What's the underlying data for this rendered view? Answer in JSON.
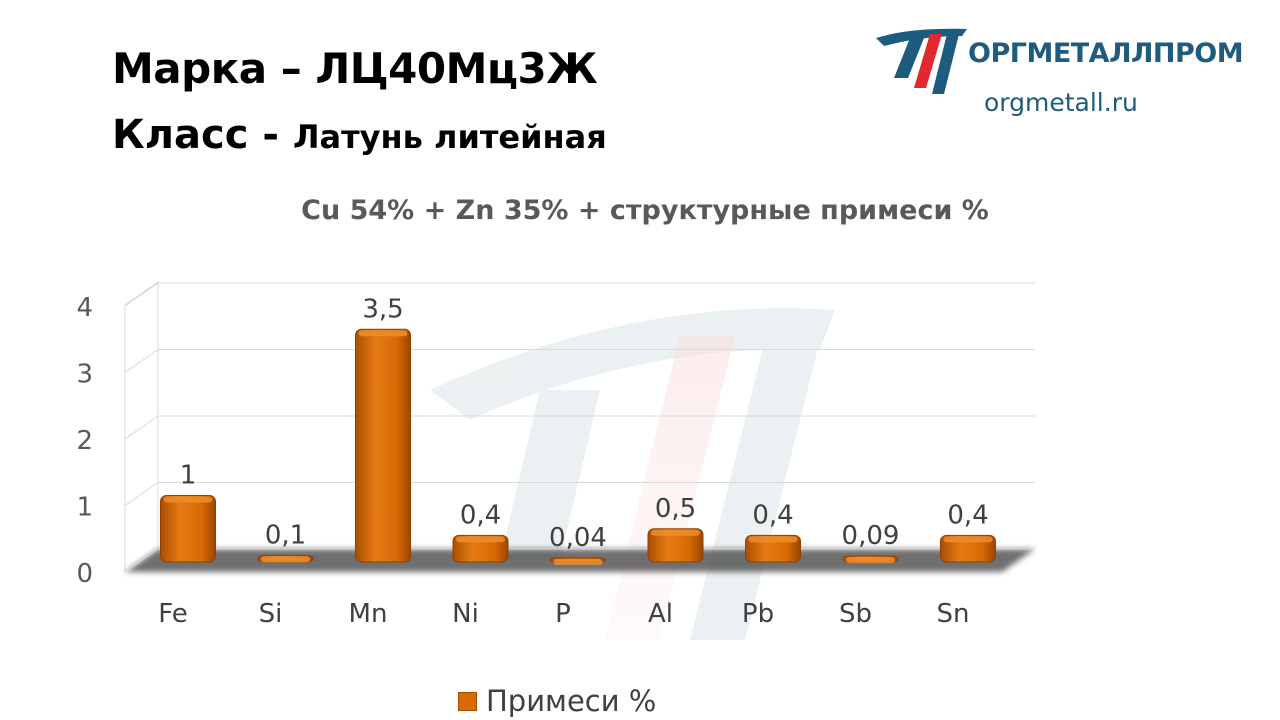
{
  "header": {
    "grade_label": "Марка",
    "grade_dash": "–",
    "grade_value": "ЛЦ40Мц3Ж",
    "class_label": "Класс -",
    "class_value": "Латунь литейная"
  },
  "logo": {
    "name": "ОРГМЕТАЛЛПРОМ",
    "site": "orgmetall.ru",
    "icon": "orgmetallprom-logo-mark"
  },
  "colors": {
    "bar": "#d86a06",
    "bar_dark": "#a44f02",
    "brand_blue": "#1d5c7e",
    "brand_red": "#e2272d",
    "text_gray": "#595959"
  },
  "chart_data": {
    "type": "bar",
    "title": "Cu 54% + Zn 35% + структурные примеси %",
    "categories": [
      "Fe",
      "Si",
      "Mn",
      "Ni",
      "P",
      "Al",
      "Pb",
      "Sb",
      "Sn"
    ],
    "series": [
      {
        "name": "Примеси %",
        "values": [
          1,
          0.1,
          3.5,
          0.4,
          0.04,
          0.5,
          0.4,
          0.09,
          0.4
        ],
        "labels": [
          "1",
          "0,1",
          "3,5",
          "0,4",
          "0,04",
          "0,5",
          "0,4",
          "0,09",
          "0,4"
        ]
      }
    ],
    "ylim": [
      0,
      4
    ],
    "yticks": [
      "0",
      "1",
      "2",
      "3",
      "4"
    ],
    "grid": true,
    "style": "3d",
    "legend": "bottom"
  }
}
